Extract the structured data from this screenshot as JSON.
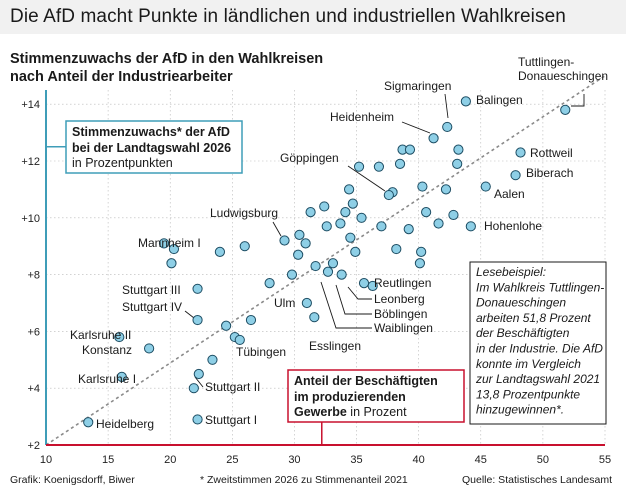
{
  "headline": "Die AfD macht Punkte in ländlichen und industriellen Wahlkreisen",
  "subtitle_line1": "Stimmenzuwachs der AfD in den Wahlkreisen",
  "subtitle_line2": "nach Anteil der Industriearbeiter",
  "colors": {
    "point_fill": "#8ecfe6",
    "point_stroke": "#1d4d63",
    "y_axis": "#3f9db8",
    "x_axis": "#c8102e",
    "trend": "#8a8a8a",
    "grid": "#b8b8b8"
  },
  "chart_data": {
    "type": "scatter",
    "xlim": [
      10,
      55
    ],
    "ylim": [
      2,
      14.5
    ],
    "xticks": [
      10,
      15,
      20,
      25,
      30,
      35,
      40,
      45,
      50,
      55
    ],
    "yticks": [
      2,
      4,
      6,
      8,
      10,
      12,
      14
    ],
    "ytick_labels": [
      "+2",
      "+4",
      "+6",
      "+8",
      "+10",
      "+12",
      "+14"
    ],
    "grid": true,
    "trendline": {
      "from": [
        10,
        2
      ],
      "to": [
        55,
        15
      ]
    },
    "ylabel": {
      "title_line1": "Stimmenzuwachs* der AfD",
      "title_line2": "bei der Landtagswahl 2026",
      "sub": "in Prozentpunkten"
    },
    "xlabel": {
      "title_line1": "Anteil der Beschäftigten",
      "title_line2": "im produzierenden",
      "title_line3": "Gewerbe",
      "sub": " in Prozent"
    },
    "labeled_points": [
      {
        "name": "Tuttlingen-Donaueschingen",
        "x": 51.8,
        "y": 13.8
      },
      {
        "name": "Balingen",
        "x": 43.8,
        "y": 14.1
      },
      {
        "name": "Sigmaringen",
        "x": 42.3,
        "y": 13.2
      },
      {
        "name": "Heidenheim",
        "x": 41.2,
        "y": 12.8
      },
      {
        "name": "Rottweil",
        "x": 48.2,
        "y": 12.3
      },
      {
        "name": "Biberach",
        "x": 47.8,
        "y": 11.5
      },
      {
        "name": "Aalen",
        "x": 45.4,
        "y": 11.1
      },
      {
        "name": "Hohenlohe",
        "x": 44.2,
        "y": 9.7
      },
      {
        "name": "Göppingen",
        "x": 37.6,
        "y": 10.8
      },
      {
        "name": "Ludwigsburg",
        "x": 29.2,
        "y": 9.2
      },
      {
        "name": "Mannheim I",
        "x": 19.5,
        "y": 9.1
      },
      {
        "name": "Stuttgart III",
        "x": 22.2,
        "y": 7.5
      },
      {
        "name": "Stuttgart IV",
        "x": 22.2,
        "y": 6.4
      },
      {
        "name": "Karlsruhe II",
        "x": 15.9,
        "y": 5.8
      },
      {
        "name": "Konstanz",
        "x": 18.3,
        "y": 5.4
      },
      {
        "name": "Karlsruhe I",
        "x": 16.1,
        "y": 4.4
      },
      {
        "name": "Heidelberg",
        "x": 13.4,
        "y": 2.8
      },
      {
        "name": "Stuttgart I",
        "x": 22.2,
        "y": 2.9
      },
      {
        "name": "Stuttgart II",
        "x": 21.9,
        "y": 4.0
      },
      {
        "name": "Tübingen",
        "x": 25.6,
        "y": 5.7
      },
      {
        "name": "Ulm",
        "x": 31.0,
        "y": 7.0
      },
      {
        "name": "Esslingen",
        "x": 31.6,
        "y": 6.5
      },
      {
        "name": "Reutlingen",
        "x": 35.6,
        "y": 7.7
      },
      {
        "name": "Leonberg",
        "x": 33.8,
        "y": 8.0
      },
      {
        "name": "Böblingen",
        "x": 32.7,
        "y": 8.1
      },
      {
        "name": "Waiblingen",
        "x": 31.7,
        "y": 8.3
      }
    ],
    "unlabeled_points": [
      [
        20.1,
        8.4
      ],
      [
        20.3,
        8.9
      ],
      [
        24.0,
        8.8
      ],
      [
        26.0,
        9.0
      ],
      [
        28.0,
        7.7
      ],
      [
        22.3,
        4.5
      ],
      [
        23.4,
        5.0
      ],
      [
        24.5,
        6.2
      ],
      [
        25.2,
        5.8
      ],
      [
        26.5,
        6.4
      ],
      [
        29.8,
        8.0
      ],
      [
        30.3,
        8.7
      ],
      [
        30.4,
        9.4
      ],
      [
        30.9,
        9.1
      ],
      [
        31.3,
        10.2
      ],
      [
        32.6,
        9.7
      ],
      [
        33.1,
        8.4
      ],
      [
        33.7,
        9.8
      ],
      [
        34.5,
        9.3
      ],
      [
        34.9,
        8.8
      ],
      [
        34.1,
        10.2
      ],
      [
        34.7,
        10.5
      ],
      [
        35.4,
        10.0
      ],
      [
        34.4,
        11.0
      ],
      [
        35.2,
        11.8
      ],
      [
        36.8,
        11.8
      ],
      [
        37.9,
        10.9
      ],
      [
        38.5,
        11.9
      ],
      [
        38.7,
        12.4
      ],
      [
        39.3,
        12.4
      ],
      [
        40.3,
        11.1
      ],
      [
        40.6,
        10.2
      ],
      [
        41.6,
        9.8
      ],
      [
        42.2,
        11.0
      ],
      [
        42.8,
        10.1
      ],
      [
        43.1,
        11.9
      ],
      [
        43.2,
        12.4
      ],
      [
        36.3,
        7.6
      ],
      [
        38.2,
        8.9
      ],
      [
        39.2,
        9.6
      ],
      [
        40.2,
        8.8
      ],
      [
        40.1,
        8.4
      ],
      [
        37.0,
        9.7
      ],
      [
        32.4,
        10.4
      ]
    ],
    "reading_example": [
      "Lesebeispiel:",
      "Im Wahlkreis Tuttlingen-",
      "Donaueschingen",
      "arbeiten 51,8 Prozent",
      "der Beschäftigten",
      "in der Industrie. Die AfD",
      "konnte im Vergleich",
      "zur Landtagswahl 2021",
      "13,8 Prozentpunkte",
      "hinzugewinnen*."
    ]
  },
  "footer": {
    "credit": "Grafik: Koenigsdorff, Biwer",
    "note": "* Zweitstimmen 2026 zu Stimmenanteil 2021",
    "source": "Quelle: Statistisches Landesamt"
  }
}
